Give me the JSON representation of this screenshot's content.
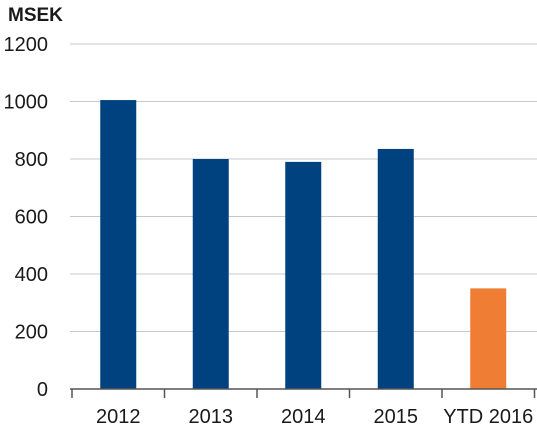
{
  "chart_data": {
    "type": "bar",
    "unit_label": "MSEK",
    "categories": [
      "2012",
      "2013",
      "2014",
      "2015",
      "YTD 2016"
    ],
    "values": [
      1005,
      800,
      790,
      835,
      350
    ],
    "bar_colors": [
      "#00427f",
      "#00427f",
      "#00427f",
      "#00427f",
      "#ef7d33"
    ],
    "y_ticks": [
      0,
      200,
      400,
      600,
      800,
      1000,
      1200
    ],
    "ylim": [
      0,
      1200
    ],
    "grid": true,
    "grid_color": "#c8c8c8",
    "axis_color": "#555555",
    "title": "",
    "xlabel": "",
    "ylabel": ""
  }
}
